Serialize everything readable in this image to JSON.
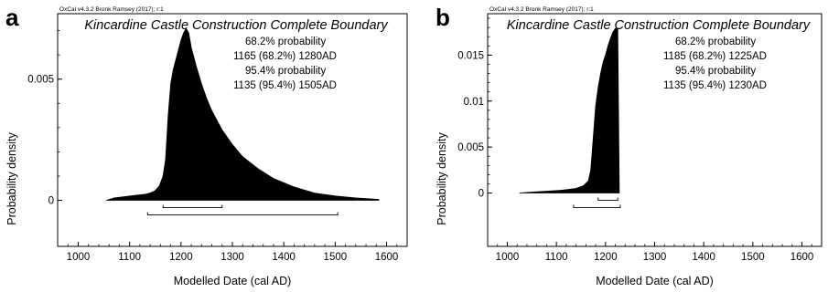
{
  "chart_data": [
    {
      "type": "area",
      "panel_label": "a",
      "software": "OxCal v4.3.2 Bronk Ramsey (2017); r:1",
      "title": "Kincardine Castle Construction Complete Boundary",
      "annotations": [
        "68.2% probability",
        "1165 (68.2%) 1280AD",
        "95.4% probability",
        "1135 (95.4%) 1505AD"
      ],
      "xlabel": "Modelled Date (cal AD)",
      "ylabel": "Probability density",
      "xlim": [
        960,
        1640
      ],
      "ylim": [
        -0.0019,
        0.0077
      ],
      "xticks": [
        1000,
        1100,
        1200,
        1300,
        1400,
        1500,
        1600
      ],
      "yticks": [
        0,
        0.005
      ],
      "ytick_labels": [
        "0",
        "0.005"
      ],
      "grid": false,
      "legend": "none",
      "x": [
        1055,
        1070,
        1090,
        1110,
        1130,
        1140,
        1150,
        1158,
        1165,
        1170,
        1175,
        1180,
        1185,
        1190,
        1195,
        1200,
        1205,
        1210,
        1215,
        1220,
        1230,
        1240,
        1250,
        1260,
        1280,
        1300,
        1320,
        1350,
        1380,
        1420,
        1460,
        1500,
        1540,
        1585
      ],
      "density": [
        0,
        0.0001,
        0.00015,
        0.0002,
        0.00025,
        0.0003,
        0.0004,
        0.0006,
        0.001,
        0.0017,
        0.0035,
        0.0048,
        0.0054,
        0.0058,
        0.0062,
        0.0066,
        0.0069,
        0.0071,
        0.0069,
        0.0063,
        0.0055,
        0.0048,
        0.0042,
        0.0037,
        0.0029,
        0.0023,
        0.0018,
        0.0013,
        0.0009,
        0.00055,
        0.0003,
        0.00018,
        0.0001,
        4e-05
      ],
      "ranges": [
        {
          "label": "68.2%",
          "from": 1165,
          "to": 1280
        },
        {
          "label": "95.4%",
          "from": 1135,
          "to": 1505
        }
      ]
    },
    {
      "type": "area",
      "panel_label": "b",
      "software": "OxCal v4.3.2 Bronk Ramsey (2017); r:1",
      "title": "Kincardine Castle Construction Complete Boundary",
      "annotations": [
        "68.2% probability",
        "1185 (68.2%) 1225AD",
        "95.4% probability",
        "1135 (95.4%) 1230AD"
      ],
      "xlabel": "Modelled Date (cal AD)",
      "ylabel": "Probability density",
      "xlim": [
        960,
        1640
      ],
      "ylim": [
        -0.0058,
        0.0195
      ],
      "xticks": [
        1000,
        1100,
        1200,
        1300,
        1400,
        1500,
        1600
      ],
      "yticks": [
        0,
        0.005,
        0.01,
        0.015
      ],
      "ytick_labels": [
        "0",
        "0.005",
        "0.01",
        "0.015"
      ],
      "grid": false,
      "legend": "none",
      "x": [
        1025,
        1050,
        1080,
        1110,
        1140,
        1155,
        1165,
        1170,
        1175,
        1180,
        1185,
        1190,
        1195,
        1200,
        1205,
        1210,
        1215,
        1220,
        1225,
        1228
      ],
      "density": [
        0,
        0.0001,
        0.0002,
        0.0003,
        0.0005,
        0.0008,
        0.0013,
        0.0025,
        0.006,
        0.0095,
        0.0115,
        0.013,
        0.0142,
        0.015,
        0.016,
        0.0168,
        0.0175,
        0.0179,
        0.0179,
        0
      ],
      "ranges": [
        {
          "label": "68.2%",
          "from": 1185,
          "to": 1225
        },
        {
          "label": "95.4%",
          "from": 1135,
          "to": 1230
        }
      ]
    }
  ]
}
